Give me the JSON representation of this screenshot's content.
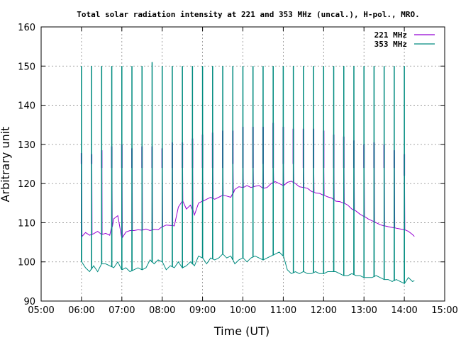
{
  "chart_data": {
    "type": "line",
    "title": "Total solar radiation intensity at 221 and 353 MHz (uncal.), H-pol., MRO.",
    "xlabel": "Time (UT)",
    "ylabel": "Arbitrary unit",
    "xlim": [
      5.0,
      15.0
    ],
    "ylim": [
      90,
      160
    ],
    "xticks": [
      "05:00",
      "06:00",
      "07:00",
      "08:00",
      "09:00",
      "10:00",
      "11:00",
      "12:00",
      "13:00",
      "14:00",
      "15:00"
    ],
    "yticks": [
      90,
      100,
      110,
      120,
      130,
      140,
      150,
      160
    ],
    "grid": true,
    "legend_position": "top-right",
    "series": [
      {
        "name": "221 MHz",
        "color": "#9400d3",
        "base_x": [
          6.0,
          6.1,
          6.2,
          6.3,
          6.4,
          6.5,
          6.6,
          6.7,
          6.8,
          6.9,
          7.0,
          7.1,
          7.2,
          7.3,
          7.4,
          7.5,
          7.6,
          7.7,
          7.8,
          7.9,
          8.0,
          8.1,
          8.2,
          8.3,
          8.4,
          8.5,
          8.6,
          8.7,
          8.8,
          8.9,
          9.0,
          9.1,
          9.2,
          9.3,
          9.4,
          9.5,
          9.6,
          9.7,
          9.8,
          9.9,
          10.0,
          10.1,
          10.2,
          10.3,
          10.4,
          10.5,
          10.6,
          10.7,
          10.8,
          10.9,
          11.0,
          11.1,
          11.2,
          11.3,
          11.4,
          11.5,
          11.6,
          11.7,
          11.8,
          11.9,
          12.0,
          12.1,
          12.2,
          12.3,
          12.4,
          12.5,
          12.6,
          12.7,
          12.8,
          12.9,
          13.0,
          13.1,
          13.2,
          13.3,
          13.4,
          13.5,
          13.6,
          13.7,
          13.8,
          13.9,
          14.0,
          14.1,
          14.2,
          14.25
        ],
        "base_y": [
          106.5,
          107.5,
          106.8,
          107.2,
          107.8,
          107.0,
          107.3,
          106.8,
          111.0,
          111.8,
          106.2,
          107.6,
          108.0,
          108.0,
          108.2,
          108.1,
          108.4,
          108.0,
          108.3,
          108.2,
          109.0,
          109.4,
          109.3,
          109.2,
          114.0,
          115.5,
          113.5,
          114.5,
          112.0,
          115.0,
          115.5,
          116.0,
          116.5,
          116.0,
          116.5,
          117.0,
          116.8,
          116.5,
          118.5,
          119.2,
          119.0,
          119.5,
          119.0,
          119.3,
          119.5,
          118.8,
          119.0,
          120.0,
          120.5,
          120.0,
          119.5,
          120.3,
          120.6,
          120.0,
          119.2,
          119.0,
          118.8,
          118.0,
          117.6,
          117.5,
          117.0,
          116.6,
          116.3,
          115.5,
          115.4,
          115.0,
          114.5,
          113.5,
          113.0,
          112.2,
          111.6,
          111.0,
          110.5,
          110.0,
          109.5,
          109.2,
          109.0,
          108.8,
          108.6,
          108.4,
          108.2,
          107.8,
          107.0,
          106.5
        ],
        "spike_times": [
          6.0,
          6.25,
          6.5,
          6.75,
          7.0,
          7.25,
          7.5,
          7.75,
          8.0,
          8.25,
          8.5,
          8.75,
          9.0,
          9.25,
          9.5,
          9.75,
          10.0,
          10.25,
          10.5,
          10.75,
          11.0,
          11.25,
          11.5,
          11.75,
          12.0,
          12.25,
          12.5,
          12.75,
          13.0,
          13.25,
          13.5,
          13.75,
          14.0
        ],
        "spike_low": [
          125,
          125,
          124,
          124,
          124,
          124,
          124,
          124,
          124,
          124,
          124,
          124,
          124,
          124,
          124,
          125,
          124,
          124,
          125,
          124,
          125,
          125,
          124,
          124,
          124,
          124,
          124,
          124,
          124,
          124,
          124,
          124,
          122
        ],
        "spike_high": [
          127.8,
          127.5,
          128.5,
          129.5,
          130.0,
          129.0,
          129.5,
          129.5,
          129.0,
          130.5,
          130.5,
          131.5,
          132.5,
          133.0,
          133.5,
          133.5,
          134.5,
          134.5,
          134.5,
          135.5,
          134.5,
          134.0,
          134.0,
          134.0,
          133.5,
          132.5,
          132.0,
          131.0,
          130.0,
          130.5,
          130.0,
          128.5,
          127.5
        ]
      },
      {
        "name": "353 MHz",
        "color": "#008b7f",
        "base_x": [
          6.0,
          6.1,
          6.2,
          6.3,
          6.4,
          6.5,
          6.6,
          6.7,
          6.8,
          6.9,
          7.0,
          7.1,
          7.2,
          7.3,
          7.4,
          7.5,
          7.6,
          7.7,
          7.8,
          7.9,
          8.0,
          8.1,
          8.2,
          8.3,
          8.4,
          8.5,
          8.6,
          8.7,
          8.8,
          8.9,
          9.0,
          9.1,
          9.2,
          9.3,
          9.4,
          9.5,
          9.6,
          9.7,
          9.8,
          9.9,
          10.0,
          10.1,
          10.2,
          10.3,
          10.4,
          10.5,
          10.6,
          10.7,
          10.8,
          10.9,
          11.0,
          11.1,
          11.2,
          11.3,
          11.4,
          11.5,
          11.6,
          11.7,
          11.8,
          11.9,
          12.0,
          12.1,
          12.2,
          12.3,
          12.4,
          12.5,
          12.6,
          12.7,
          12.8,
          12.9,
          13.0,
          13.1,
          13.2,
          13.3,
          13.4,
          13.5,
          13.6,
          13.7,
          13.8,
          13.9,
          14.0,
          14.1,
          14.2,
          14.25
        ],
        "base_y": [
          100.0,
          98.5,
          97.5,
          99.0,
          97.5,
          99.5,
          99.5,
          99.0,
          98.5,
          100.0,
          98.0,
          98.5,
          97.5,
          98.0,
          98.5,
          98.0,
          98.5,
          100.5,
          99.5,
          100.5,
          100.0,
          98.0,
          99.0,
          98.5,
          100.0,
          98.5,
          99.0,
          100.0,
          99.0,
          101.5,
          101.0,
          99.5,
          101.0,
          100.5,
          101.0,
          102.0,
          101.0,
          101.5,
          99.5,
          100.5,
          101.0,
          100.0,
          101.0,
          101.5,
          101.0,
          100.5,
          101.0,
          101.5,
          102.0,
          102.5,
          101.5,
          98.0,
          97.0,
          97.5,
          97.0,
          97.5,
          97.0,
          97.0,
          97.5,
          97.0,
          97.0,
          97.5,
          97.5,
          97.5,
          97.0,
          96.5,
          96.5,
          97.0,
          96.5,
          96.5,
          96.0,
          96.0,
          96.0,
          96.5,
          96.0,
          95.5,
          95.5,
          95.0,
          95.5,
          95.0,
          94.5,
          96.0,
          95.0,
          95.2
        ],
        "spike_times": [
          6.0,
          6.25,
          6.5,
          6.75,
          7.0,
          7.25,
          7.5,
          7.75,
          8.0,
          8.25,
          8.5,
          8.75,
          9.0,
          9.25,
          9.5,
          9.75,
          10.0,
          10.25,
          10.5,
          10.75,
          11.0,
          11.25,
          11.5,
          11.75,
          12.0,
          12.25,
          12.5,
          12.75,
          13.0,
          13.25,
          13.5,
          13.75,
          14.0
        ],
        "spike_high": [
          150,
          150,
          150,
          150,
          150,
          150,
          150,
          151,
          150,
          150,
          150,
          150,
          150,
          150,
          150,
          150,
          150,
          150,
          150,
          150,
          150,
          150,
          150,
          150,
          150,
          150,
          150,
          150,
          150,
          150,
          150,
          150,
          150
        ]
      }
    ]
  }
}
